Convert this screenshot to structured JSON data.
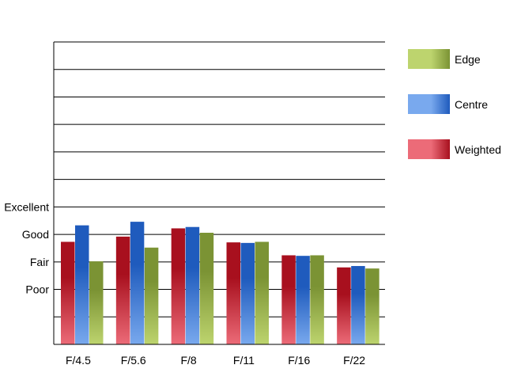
{
  "chart_data": {
    "type": "bar",
    "categories": [
      "F/4.5",
      "F/5.6",
      "F/8",
      "F/11",
      "F/16",
      "F/22"
    ],
    "series": [
      {
        "name": "Weighted",
        "values": [
          2.73,
          2.92,
          3.22,
          2.71,
          2.24,
          1.8
        ]
      },
      {
        "name": "Centre",
        "values": [
          3.33,
          3.46,
          3.27,
          2.69,
          2.22,
          1.85
        ]
      },
      {
        "name": "Edge",
        "values": [
          2.02,
          2.52,
          3.06,
          2.73,
          2.24,
          1.76
        ]
      }
    ],
    "yticks": [
      {
        "value": 1,
        "label": "Poor"
      },
      {
        "value": 2,
        "label": "Fair"
      },
      {
        "value": 3,
        "label": "Good"
      },
      {
        "value": 4,
        "label": "Excellent"
      }
    ],
    "ylim": [
      -1,
      10
    ],
    "gridlines_every": 1,
    "grid": true,
    "legend_position": "right",
    "legend_order": [
      "Edge",
      "Centre",
      "Weighted"
    ],
    "colors": {
      "Weighted": {
        "dark": "#a8101e",
        "light": "#ec6b78"
      },
      "Centre": {
        "dark": "#1f5bbd",
        "light": "#79a9ee"
      },
      "Edge": {
        "dark": "#7b9334",
        "light": "#bdd46e"
      }
    },
    "title": "",
    "xlabel": "",
    "ylabel": ""
  }
}
